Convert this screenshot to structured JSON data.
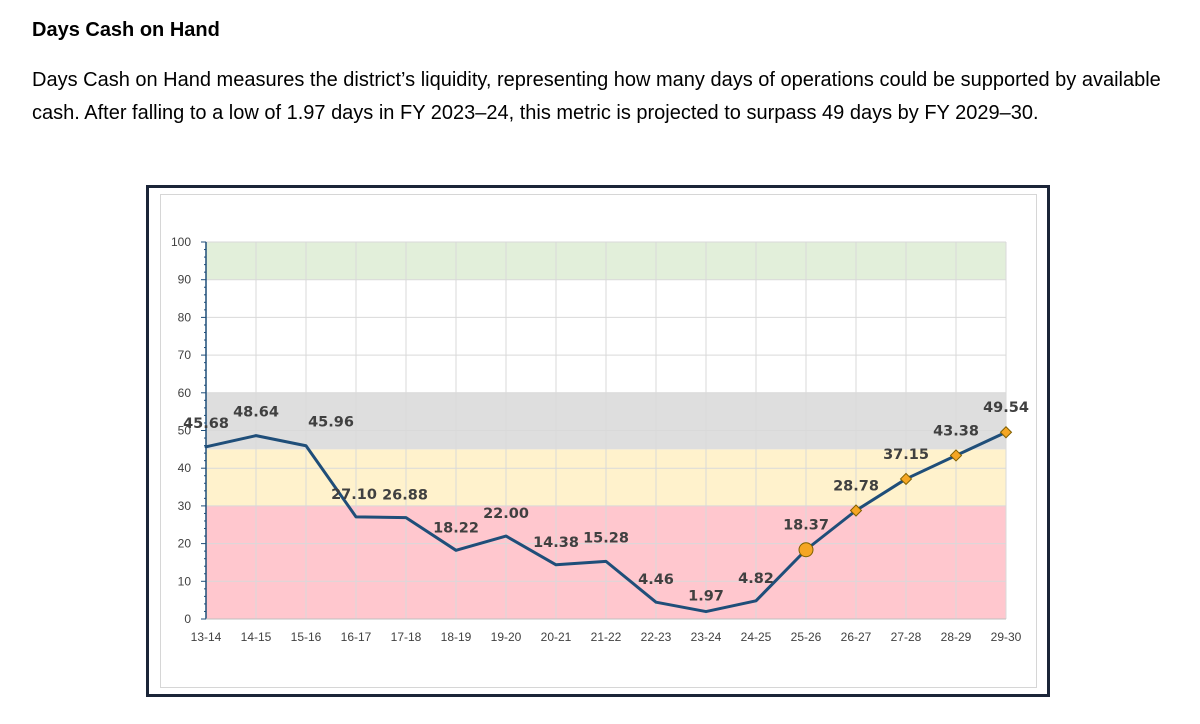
{
  "doc": {
    "heading": "Days Cash on Hand",
    "paragraph": "Days Cash on Hand measures the district’s liquidity, representing how many days of operations could be supported by available cash. After falling to a low of 1.97 days in FY 2023–24, this metric is projected to surpass 49 days by FY 2029–30."
  },
  "chart_data": {
    "type": "line",
    "title": "",
    "xlabel": "",
    "ylabel": "",
    "ylim": [
      0,
      100
    ],
    "yticks": [
      0,
      10,
      20,
      30,
      40,
      50,
      60,
      70,
      80,
      90,
      100
    ],
    "grid": true,
    "categories": [
      "13-14",
      "14-15",
      "15-16",
      "16-17",
      "17-18",
      "18-19",
      "19-20",
      "20-21",
      "21-22",
      "22-23",
      "23-24",
      "24-25",
      "25-26",
      "26-27",
      "27-28",
      "28-29",
      "29-30"
    ],
    "series": [
      {
        "values": [
          45.68,
          48.64,
          45.96,
          27.1,
          26.88,
          18.22,
          22.0,
          14.38,
          15.28,
          4.46,
          1.97,
          4.82,
          18.37,
          28.78,
          37.15,
          43.38,
          49.54
        ],
        "labels": [
          "45.68",
          "48.64",
          "45.96",
          "27.10",
          "26.88",
          "18.22",
          "22.00",
          "14.38",
          "15.28",
          "4.46",
          "1.97",
          "4.82",
          "18.37",
          "28.78",
          "37.15",
          "43.38",
          "49.54"
        ],
        "line_color": "#1f4e79",
        "marker_color": "#f5a623",
        "marker_edge_color": "#7f5f00",
        "circle_marker_index": 12,
        "diamond_marker_from_index": 13
      }
    ],
    "bands": [
      {
        "from": 0,
        "to": 30,
        "color": "#ffc7ce"
      },
      {
        "from": 30,
        "to": 45,
        "color": "#fff2cc"
      },
      {
        "from": 45,
        "to": 60,
        "color": "#dedede"
      },
      {
        "from": 90,
        "to": 100,
        "color": "#e2efda"
      }
    ]
  }
}
